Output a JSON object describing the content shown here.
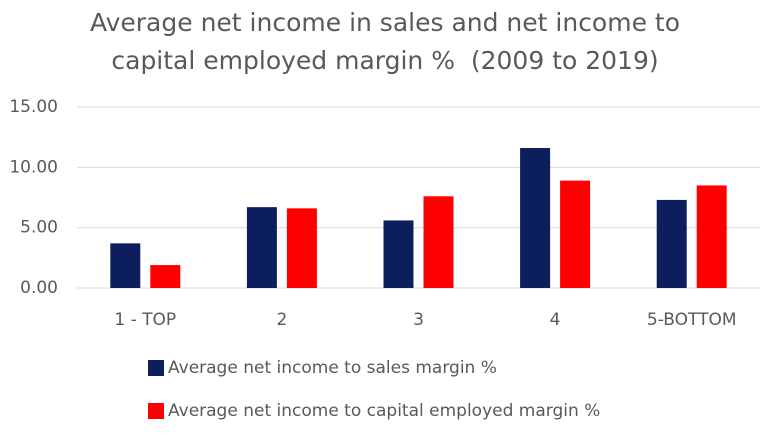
{
  "chart_data": {
    "type": "bar",
    "title": "Average net income in sales and net income to capital employed margin %  (2009 to 2019)",
    "categories": [
      "1 - TOP",
      "2",
      "3",
      "4",
      "5-BOTTOM"
    ],
    "series": [
      {
        "name": "Average net income to sales margin %",
        "color": "#0c1f5c",
        "values": [
          3.7,
          6.7,
          5.6,
          11.6,
          7.3
        ]
      },
      {
        "name": "Average net income to capital employed margin %",
        "color": "#ff0000",
        "values": [
          1.9,
          6.6,
          7.6,
          8.9,
          8.5
        ]
      }
    ],
    "ylim": [
      0,
      15
    ],
    "yticks": [
      {
        "value": 0,
        "label": "0.00"
      },
      {
        "value": 5,
        "label": "5.00"
      },
      {
        "value": 10,
        "label": "10.00"
      },
      {
        "value": 15,
        "label": "15.00"
      }
    ],
    "grid": true
  }
}
